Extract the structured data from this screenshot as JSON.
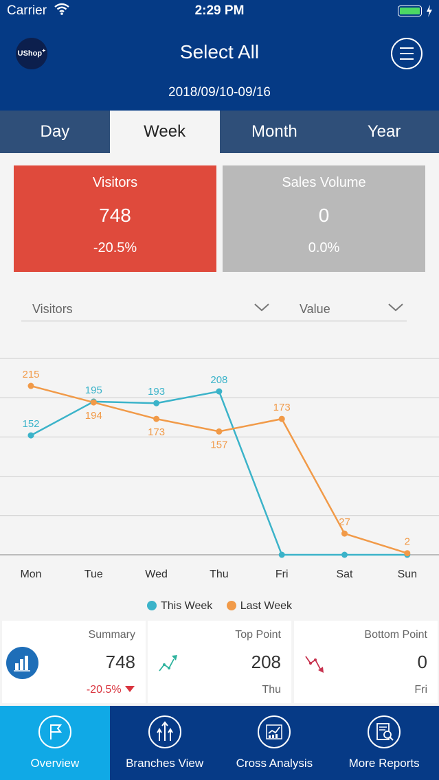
{
  "status_bar": {
    "carrier": "Carrier",
    "time": "2:29 PM"
  },
  "header": {
    "logo": "UShop",
    "logo_sup": "+",
    "title": "Select All",
    "date_range": "2018/09/10-09/16"
  },
  "tabs": [
    {
      "label": "Day",
      "active": false
    },
    {
      "label": "Week",
      "active": true
    },
    {
      "label": "Month",
      "active": false
    },
    {
      "label": "Year",
      "active": false
    }
  ],
  "cards": {
    "visitors": {
      "label": "Visitors",
      "value": "748",
      "change": "-20.5%",
      "color": "#df4a3c"
    },
    "sales": {
      "label": "Sales Volume",
      "value": "0",
      "change": "0.0%",
      "color": "#b9b9b9"
    }
  },
  "selectors": {
    "metric": "Visitors",
    "mode": "Value"
  },
  "chart_data": {
    "type": "line",
    "categories": [
      "Mon",
      "Tue",
      "Wed",
      "Thu",
      "Fri",
      "Sat",
      "Sun"
    ],
    "series": [
      {
        "name": "This Week",
        "values": [
          152,
          195,
          193,
          208,
          0,
          0,
          0
        ],
        "color": "#3bb3c9",
        "labels": [
          "152",
          "195",
          "193",
          "208",
          "",
          "",
          ""
        ]
      },
      {
        "name": "Last Week",
        "values": [
          215,
          194,
          173,
          157,
          173,
          27,
          2
        ],
        "color": "#f19a48",
        "labels": [
          "215",
          "194",
          "173",
          "157",
          "173",
          "27",
          "2"
        ]
      }
    ],
    "ylim": [
      0,
      250
    ],
    "grid": true,
    "legend": "bottom"
  },
  "stats": {
    "summary": {
      "label": "Summary",
      "value": "748",
      "change": "-20.5%"
    },
    "top": {
      "label": "Top Point",
      "value": "208",
      "day": "Thu"
    },
    "bottom": {
      "label": "Bottom Point",
      "value": "0",
      "day": "Fri"
    }
  },
  "tabbar": [
    {
      "label": "Overview",
      "icon": "flag-icon",
      "active": true
    },
    {
      "label": "Branches View",
      "icon": "branches-icon",
      "active": false
    },
    {
      "label": "Cross Analysis",
      "icon": "chart-icon",
      "active": false
    },
    {
      "label": "More Reports",
      "icon": "reports-icon",
      "active": false
    }
  ]
}
